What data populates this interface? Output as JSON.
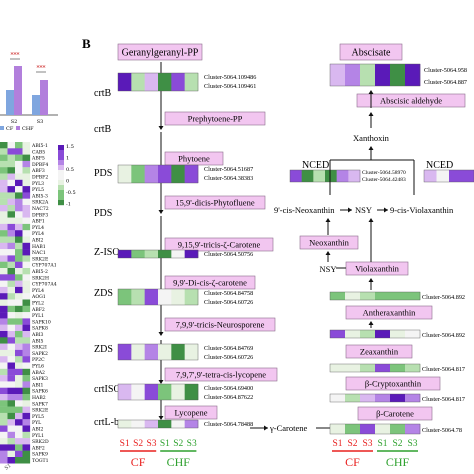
{
  "panel_b_label": "B",
  "significance_marks": [
    "***",
    "***"
  ],
  "panel_a_ticks": [
    "S2",
    "S3"
  ],
  "panel_a_legend": [
    "CF",
    "CHF"
  ],
  "colorbar_ticks": [
    "1.5",
    "1",
    "0.5",
    "0",
    "-0.5",
    "-1"
  ],
  "panel_a_genes": [
    "ABI5-1",
    "CAB5",
    "ABF5",
    "DPBF4",
    "ABF3",
    "DPBF2",
    "PYL3",
    "PYL5",
    "ABI5-3",
    "SRK2A",
    "NAC72",
    "DPBF3",
    "ABF1",
    "PYL4",
    "PYL4",
    "ABI2",
    "HAB1",
    "NAC1",
    "SRK2E",
    "CYP707A1",
    "ABI5-2",
    "SRK2H",
    "CYP707A4",
    "PYL4",
    "AOG1",
    "PYL2",
    "ABF2",
    "PYL1",
    "SAPK10",
    "SAPK8",
    "ABI3",
    "ABI5",
    "SRK2I",
    "SAPK2",
    "PP2C",
    "PYL6",
    "ABA2",
    "SAPK3",
    "ABI1",
    "SAPK6",
    "HAB2",
    "SAPK7",
    "SRK2E",
    "PYL5",
    "PYL",
    "ABI2",
    "PYL1",
    "SRK2D",
    "ABF2",
    "SAPK9",
    "TOGT1"
  ],
  "left_pathway": {
    "enzymes": [
      "crtB",
      "crtB",
      "PDS",
      "PDS",
      "Z-ISO",
      "ZDS",
      "ZDS",
      "crtISO",
      "crtL-b"
    ],
    "metabolites": [
      "Geranylgeranyl-PP",
      "Prephytoene-PP",
      "Phytoene",
      "15,9'-dicis-Phytofluene",
      "9,15,9'-tricis-ζ-Carotene",
      "9,9'-Di-cis-ζ-carotene",
      "7,9,9'-tricis-Neurosporene",
      "7,9,7',9'-tetra-cis-lycopene",
      "Lycopene"
    ],
    "clusters": [
      "Cluster-5064.109486",
      "Cluster-5064.109461",
      "Cluster-5064.51687",
      "Cluster-5064.38383",
      "Cluster-5064.50756",
      "Cluster-5064.84758",
      "Cluster-5064.60726",
      "Cluster-5064.84769",
      "Cluster-5064.60726",
      "Cluster-5064.69400",
      "Cluster-5064.87622",
      "Cluster-5064.78488"
    ]
  },
  "gamma_carotene": "γ-Carotene",
  "right_pathway": {
    "metabolites": [
      "Abscisate",
      "Abscisic aldehyde",
      "Xanthoxin",
      "9'-cis-Neoxanthin",
      "NSY",
      "9-cis-Violaxanthin",
      "Neoxanthin",
      "NSY",
      "Violaxanthin",
      "Antheraxanthin",
      "Zeaxanthin",
      "β-Cryptoxanthin",
      "β-Carotene"
    ],
    "nced": [
      "NCED",
      "NCED"
    ],
    "clusters": [
      "Cluster-5064.958",
      "Cluster-5064.887",
      "Cluster-5064.58970",
      "Cluster-5064.42483",
      "Cluster-5064.892",
      "Cluster-5064.892",
      "Cluster-5064.817",
      "Cluster-5064.817",
      "Cluster-5064.78"
    ]
  },
  "samples": [
    "S1",
    "S2",
    "S3",
    "S1",
    "S2",
    "S3"
  ],
  "groups": [
    "CF",
    "CHF"
  ],
  "colors": {
    "cf": "#e8201f",
    "chf": "#2ea12e",
    "high": "#6a24c8",
    "low": "#4aa34e",
    "box": "#f2c6f0"
  }
}
